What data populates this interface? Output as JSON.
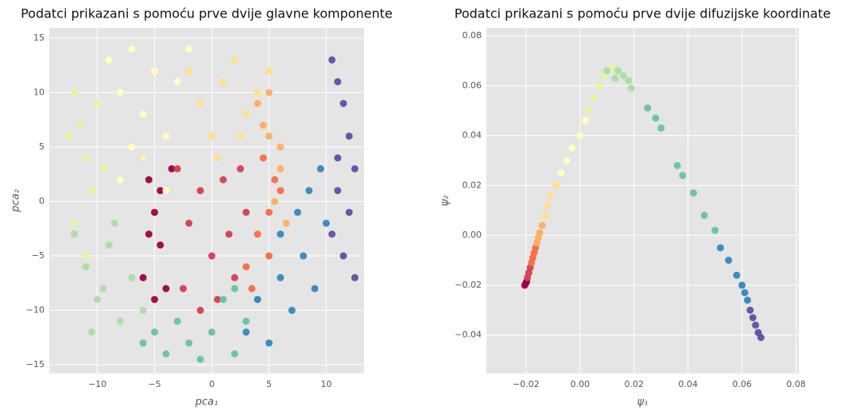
{
  "chart_data": [
    {
      "type": "scatter",
      "title": "Podatci prikazani s pomoću prve dvije glavne komponente",
      "xlabel": "pca₁",
      "ylabel": "pca₂",
      "grid": true,
      "xlim": [
        -14.2,
        13.3
      ],
      "ylim": [
        -15.8,
        15.95
      ],
      "xticks": [
        {
          "value": -10,
          "label": "−10"
        },
        {
          "value": -5,
          "label": "−5"
        },
        0,
        5,
        10
      ],
      "yticks": [
        {
          "value": -15,
          "label": "−15"
        },
        {
          "value": -10,
          "label": "−10"
        },
        {
          "value": -5,
          "label": "−5"
        },
        0,
        5,
        10,
        15
      ],
      "series": [
        {
          "color": "#9e0142",
          "x": [
            -6,
            -5.5,
            -5,
            -4.5,
            -6,
            -5,
            -4,
            -3.5,
            -5.5,
            -4.5
          ],
          "values": [
            4,
            2,
            -1,
            -4,
            -7,
            -9,
            -8,
            3,
            -3,
            1
          ]
        },
        {
          "color": "#d53e4f",
          "x": [
            -3,
            -2,
            -1,
            0,
            1,
            2,
            3,
            -2.5,
            0.5,
            2.5,
            -1,
            1.5
          ],
          "values": [
            3,
            -2,
            1,
            -5,
            2,
            -7,
            -1,
            -8,
            -9,
            3,
            -10,
            -3
          ]
        },
        {
          "color": "#f46d43",
          "x": [
            3,
            4,
            5,
            5.5,
            4.5,
            3.5,
            5,
            6
          ],
          "values": [
            -6,
            -3,
            -1,
            2,
            4,
            -8,
            -5,
            1
          ]
        },
        {
          "color": "#fdae61",
          "x": [
            4,
            5,
            6,
            5.5,
            6.5,
            4.5,
            5,
            6
          ],
          "values": [
            9,
            6,
            3,
            0,
            -2,
            7,
            10,
            5
          ]
        },
        {
          "color": "#fee08b",
          "x": [
            -2,
            -1,
            0,
            1,
            2,
            3,
            4,
            5,
            2.5,
            0.5
          ],
          "values": [
            12,
            9,
            6,
            11,
            13,
            8,
            10,
            12,
            6,
            4
          ]
        },
        {
          "color": "#ffffbf",
          "x": [
            -9,
            -8,
            -7,
            -6,
            -5,
            -4,
            -3,
            -2,
            -8,
            -6,
            -4,
            -7
          ],
          "values": [
            13,
            10,
            14,
            8,
            12,
            6,
            11,
            14,
            2,
            4,
            1,
            5
          ]
        },
        {
          "color": "#e6f598",
          "x": [
            -12,
            -11.5,
            -11,
            -10.5,
            -12,
            -10,
            -11,
            -9.5,
            -12.5
          ],
          "values": [
            10,
            7,
            4,
            1,
            -2,
            9,
            -5,
            3,
            6
          ]
        },
        {
          "color": "#abdda4",
          "x": [
            -12,
            -11,
            -10,
            -9,
            -8,
            -7,
            -6,
            -10.5,
            -8.5,
            -9.5
          ],
          "values": [
            -3,
            -6,
            -9,
            -4,
            -11,
            -7,
            -10,
            -12,
            -2,
            -8
          ]
        },
        {
          "color": "#66c2a5",
          "x": [
            -5,
            -4,
            -3,
            -2,
            -1,
            0,
            1,
            2,
            3,
            4,
            -6,
            2
          ],
          "values": [
            -12,
            -14,
            -11,
            -13,
            -14.5,
            -12,
            -9,
            -14,
            -11,
            -9,
            -13,
            -8
          ]
        },
        {
          "color": "#3288bd",
          "x": [
            3,
            4,
            5,
            6,
            7,
            8,
            9,
            10,
            8.5,
            9.5,
            7.5,
            6
          ],
          "values": [
            -12,
            -9,
            -13,
            -7,
            -10,
            -5,
            -8,
            -2,
            1,
            3,
            -1,
            -3
          ]
        },
        {
          "color": "#5e4fa2",
          "x": [
            10.5,
            11,
            11.5,
            12,
            12.5,
            11,
            12,
            10.5,
            11.5,
            12.5,
            11
          ],
          "values": [
            13,
            11,
            9,
            6,
            3,
            1,
            -1,
            -3,
            -5,
            -7,
            4
          ]
        }
      ]
    },
    {
      "type": "scatter",
      "title": "Podatci prikazani s pomoću prve dvije difuzijske koordinate",
      "xlabel": "ψ₁",
      "ylabel": "ψ₂",
      "grid": true,
      "xlim": [
        -0.0347,
        0.081
      ],
      "ylim": [
        -0.0554,
        0.0832
      ],
      "xticks": [
        {
          "value": -0.02,
          "label": "−0.02"
        },
        {
          "value": 0,
          "label": "0.00"
        },
        0.02,
        0.04,
        0.06,
        0.08
      ],
      "yticks": [
        {
          "value": -0.04,
          "label": "−0.04"
        },
        {
          "value": -0.02,
          "label": "−0.02"
        },
        {
          "value": 0,
          "label": "0.00"
        },
        0.02,
        0.04,
        0.06,
        0.08
      ],
      "series": [
        {
          "color": "#9e0142",
          "x": [
            -0.0205,
            -0.02,
            -0.0198
          ],
          "values": [
            -0.02,
            -0.019,
            -0.0185
          ]
        },
        {
          "color": "#d53e4f",
          "x": [
            -0.0195,
            -0.019,
            -0.0185
          ],
          "values": [
            -0.017,
            -0.015,
            -0.013
          ]
        },
        {
          "color": "#f46d43",
          "x": [
            -0.018,
            -0.0175,
            -0.017,
            -0.0165
          ],
          "values": [
            -0.011,
            -0.009,
            -0.007,
            -0.005
          ]
        },
        {
          "color": "#fdae61",
          "x": [
            -0.016,
            -0.0155,
            -0.015,
            -0.014
          ],
          "values": [
            -0.003,
            -0.001,
            0.001,
            0.004
          ]
        },
        {
          "color": "#fee08b",
          "x": [
            -0.013,
            -0.012,
            -0.011,
            -0.009
          ],
          "values": [
            0.008,
            0.012,
            0.016,
            0.02
          ]
        },
        {
          "color": "#ffffbf",
          "x": [
            -0.007,
            -0.005,
            -0.003,
            0,
            0.002
          ],
          "values": [
            0.025,
            0.03,
            0.035,
            0.04,
            0.046
          ]
        },
        {
          "color": "#e6f598",
          "x": [
            0.003,
            0.005,
            0.007,
            0.009,
            0.012
          ],
          "values": [
            0.05,
            0.055,
            0.06,
            0.064,
            0.067
          ]
        },
        {
          "color": "#abdda4",
          "x": [
            0.014,
            0.016,
            0.018,
            0.019,
            0.01,
            0.013
          ],
          "values": [
            0.066,
            0.064,
            0.062,
            0.059,
            0.066,
            0.063
          ]
        },
        {
          "color": "#66c2a5",
          "x": [
            0.025,
            0.028,
            0.03,
            0.036,
            0.038,
            0.042,
            0.046,
            0.05
          ],
          "values": [
            0.051,
            0.047,
            0.043,
            0.028,
            0.024,
            0.017,
            0.008,
            0.002
          ]
        },
        {
          "color": "#3288bd",
          "x": [
            0.052,
            0.055,
            0.058,
            0.06,
            0.061,
            0.062
          ],
          "values": [
            -0.005,
            -0.01,
            -0.016,
            -0.02,
            -0.023,
            -0.026
          ]
        },
        {
          "color": "#5e4fa2",
          "x": [
            0.063,
            0.064,
            0.065,
            0.066,
            0.067
          ],
          "values": [
            -0.03,
            -0.033,
            -0.036,
            -0.039,
            -0.041
          ]
        }
      ]
    }
  ]
}
